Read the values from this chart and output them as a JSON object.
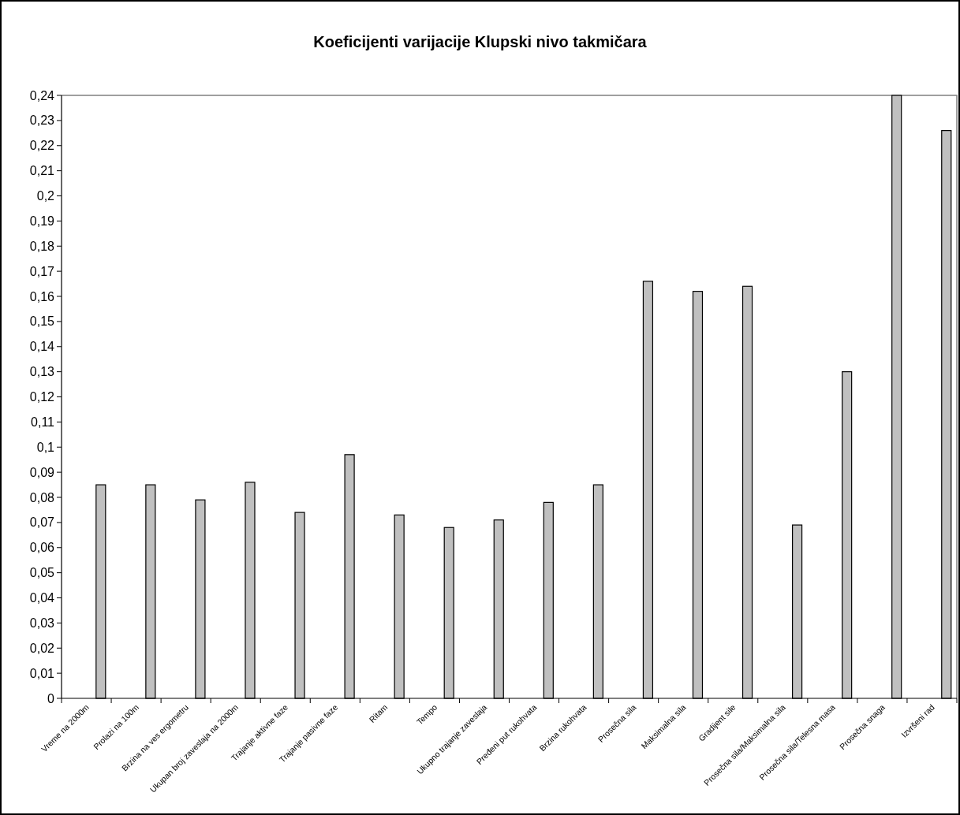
{
  "chart_data": {
    "type": "bar",
    "title": "Koeficijenti varijacije Klupski nivo takmičara",
    "categories": [
      "Vreme na 2000m",
      "Prolazi na 100m",
      "Brzina na ves ergometru",
      "Ukupan broj zaveslaja na 2000m",
      "Trajanje aktivne faze",
      "Trajanje pasivne faze",
      "Ritam",
      "Tempo",
      "Ukupno trajanje zaveslaja",
      "Pređeni put rukohvata",
      "Brzina rukohvata",
      "Prosečna sila",
      "Maksimalna sila",
      "Gradijent sile",
      "Prosečna sila/Maksimalna sila",
      "Prosečna sila/Telesna masa",
      "Prosečna snaga",
      "Izvršeni rad"
    ],
    "values": [
      0.085,
      0.085,
      0.079,
      0.086,
      0.074,
      0.097,
      0.073,
      0.068,
      0.071,
      0.078,
      0.085,
      0.166,
      0.162,
      0.164,
      0.069,
      0.13,
      0.24,
      0.226
    ],
    "color": "#c0c0c0",
    "ylim": [
      0,
      0.24
    ],
    "yticks": [
      {
        "value": 0,
        "label": "0"
      },
      {
        "value": 0.01,
        "label": "0,01"
      },
      {
        "value": 0.02,
        "label": "0,02"
      },
      {
        "value": 0.03,
        "label": "0,03"
      },
      {
        "value": 0.04,
        "label": "0,04"
      },
      {
        "value": 0.05,
        "label": "0,05"
      },
      {
        "value": 0.06,
        "label": "0,06"
      },
      {
        "value": 0.07,
        "label": "0,07"
      },
      {
        "value": 0.08,
        "label": "0,08"
      },
      {
        "value": 0.09,
        "label": "0,09"
      },
      {
        "value": 0.1,
        "label": "0,1"
      },
      {
        "value": 0.11,
        "label": "0,11"
      },
      {
        "value": 0.12,
        "label": "0,12"
      },
      {
        "value": 0.13,
        "label": "0,13"
      },
      {
        "value": 0.14,
        "label": "0,14"
      },
      {
        "value": 0.15,
        "label": "0,15"
      },
      {
        "value": 0.16,
        "label": "0,16"
      },
      {
        "value": 0.17,
        "label": "0,17"
      },
      {
        "value": 0.18,
        "label": "0,18"
      },
      {
        "value": 0.19,
        "label": "0,19"
      },
      {
        "value": 0.2,
        "label": "0,2"
      },
      {
        "value": 0.21,
        "label": "0,21"
      },
      {
        "value": 0.22,
        "label": "0,22"
      },
      {
        "value": 0.23,
        "label": "0,23"
      },
      {
        "value": 0.24,
        "label": "0,24"
      }
    ],
    "grid": false
  }
}
